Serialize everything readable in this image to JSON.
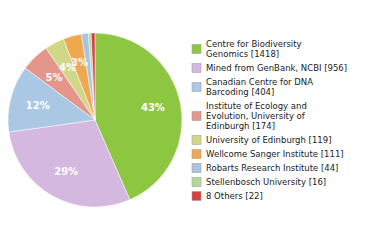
{
  "chart_data": {
    "type": "pie",
    "categories": [
      "Centre for Biodiversity\nGenomics [1418]",
      "Mined from GenBank, NCBI [956]",
      "Canadian Centre for DNA\nBarcoding [404]",
      "Institute of Ecology and\nEvolution, University of\nEdinburgh [174]",
      "University of Edinburgh [119]",
      "Wellcome Sanger Institute [111]",
      "Robarts Research Institute [44]",
      "Stellenbosch University [16]",
      "8 Others [22]"
    ],
    "values": [
      43.4,
      29.3,
      12.4,
      5.3,
      3.6,
      3.4,
      1.3,
      0.5,
      0.7
    ],
    "value_labels": [
      "43%",
      "29%",
      "12%",
      "5%",
      "4%",
      "3%",
      null,
      null,
      null
    ],
    "colors": [
      "#8dc641",
      "#d4b8e0",
      "#aac8e4",
      "#e4968a",
      "#d0d888",
      "#f0a850",
      "#aac4e0",
      "#b0d898",
      "#d84040"
    ],
    "data_labels": true,
    "legend": "right"
  }
}
